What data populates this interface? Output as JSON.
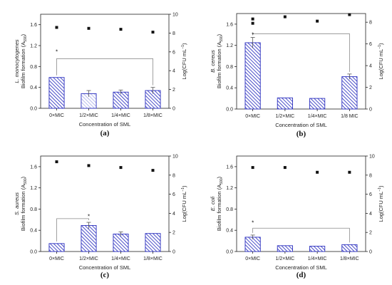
{
  "chart_data": [
    {
      "type": "bar",
      "panel": "(a)",
      "organism": "L. monocytogenes",
      "ylabel": "Biofilm formation (A",
      "ylabel_sub": "590",
      "ylabel_suffix": ")",
      "y2label": "Log(CFU mL",
      "y2label_sup": "−1",
      "y2label_suffix": ")",
      "xlabel": "Concentration of SML",
      "categories": [
        "0×MIC",
        "1/2×MIC",
        "1/4×MIC",
        "1/8×MIC"
      ],
      "values": [
        0.59,
        0.28,
        0.31,
        0.34
      ],
      "errors": [
        0.0,
        0.06,
        0.04,
        0.06
      ],
      "bar_patterns": [
        "dense",
        "light",
        "dense",
        "dense"
      ],
      "cfu": [
        8.6,
        8.5,
        8.4,
        8.1
      ],
      "ylim": [
        0,
        1.8
      ],
      "yticks": [
        "0.0",
        "0.4",
        "0.8",
        "1.2",
        "1.6"
      ],
      "ytick_values": [
        0,
        0.4,
        0.8,
        1.2,
        1.6
      ],
      "y2lim": [
        0,
        10
      ],
      "y2ticks": [
        "0",
        "2",
        "4",
        "6",
        "8",
        "10"
      ],
      "y2tick_values": [
        0,
        2,
        4,
        6,
        8,
        10
      ],
      "bracket": {
        "from": 0,
        "to": 3,
        "y": 0.95
      },
      "stars": [
        {
          "category": 0,
          "y": 1.1,
          "text": "*"
        }
      ]
    },
    {
      "type": "bar",
      "panel": "(b)",
      "organism": "B. cereus",
      "ylabel": "Biofilm formation (A",
      "ylabel_sub": "590",
      "ylabel_suffix": ")",
      "y2label": "Log(CFU mL",
      "y2label_sup": "−1",
      "y2label_suffix": ")",
      "xlabel": "Concentration of SML",
      "categories": [
        "0×MIC",
        "1/2×MIC",
        "1/4×MIC",
        "1/8 MIC"
      ],
      "values": [
        1.25,
        0.21,
        0.2,
        0.61
      ],
      "errors": [
        0.1,
        0.0,
        0.0,
        0.05
      ],
      "bar_patterns": [
        "dense",
        "dense",
        "dense",
        "dense"
      ],
      "cfu": [
        8.3,
        8.5,
        8.1,
        8.7
      ],
      "cfu_extra": [
        {
          "category": 0,
          "value": 7.9
        }
      ],
      "ylim": [
        0,
        1.8
      ],
      "yticks": [
        "0.0",
        "0.4",
        "0.8",
        "1.2",
        "1.6"
      ],
      "ytick_values": [
        0,
        0.4,
        0.8,
        1.2,
        1.6
      ],
      "y2lim": [
        0,
        8.8
      ],
      "y2ticks": [
        "0",
        "2",
        "4",
        "6",
        "8"
      ],
      "y2tick_values": [
        0,
        2,
        4,
        6,
        8
      ],
      "bracket": {
        "from": 0,
        "to": 3,
        "y": 1.42
      },
      "stars": [
        {
          "category": 0,
          "y": 1.42,
          "text": "*"
        }
      ]
    },
    {
      "type": "bar",
      "panel": "(c)",
      "organism": "S. aureus",
      "ylabel": "Biofilm formation (A",
      "ylabel_sub": "590",
      "ylabel_suffix": ")",
      "y2label": "Log(CFU mL",
      "y2label_sup": "−1",
      "y2label_suffix": ")",
      "xlabel": "Concentration of SML",
      "categories": [
        "0×MIC",
        "1/2×MIC",
        "1/4×MIC",
        "1/8×MIC"
      ],
      "values": [
        0.15,
        0.49,
        0.33,
        0.34
      ],
      "errors": [
        0.0,
        0.06,
        0.04,
        0.0
      ],
      "bar_patterns": [
        "dense",
        "dense",
        "dense",
        "dense"
      ],
      "cfu": [
        9.4,
        9.0,
        8.8,
        8.5
      ],
      "ylim": [
        0,
        1.8
      ],
      "yticks": [
        "0.0",
        "0.4",
        "0.8",
        "1.2",
        "1.6"
      ],
      "ytick_values": [
        0,
        0.4,
        0.8,
        1.2,
        1.6
      ],
      "y2lim": [
        0,
        10
      ],
      "y2ticks": [
        "0",
        "2",
        "4",
        "6",
        "8",
        "10"
      ],
      "y2tick_values": [
        0,
        2,
        4,
        6,
        8,
        10
      ],
      "bracket": {
        "from": 0,
        "to": 1,
        "y": 0.62
      },
      "stars": [
        {
          "category": 1,
          "y": 0.68,
          "text": "*"
        }
      ]
    },
    {
      "type": "bar",
      "panel": "(d)",
      "organism": "E. coli",
      "ylabel": "Biofilm formation (A",
      "ylabel_sub": "590",
      "ylabel_suffix": ")",
      "y2label": "Log(CFU mL",
      "y2label_sup": "−1",
      "y2label_suffix": ")",
      "xlabel": "Concentration of SML",
      "categories": [
        "0×MIC",
        "1/2×MIC",
        "1/4×MIC",
        "1/8×MIC"
      ],
      "values": [
        0.27,
        0.11,
        0.1,
        0.13
      ],
      "errors": [
        0.04,
        0.0,
        0.0,
        0.0
      ],
      "bar_patterns": [
        "dense",
        "dense",
        "dense",
        "dense"
      ],
      "cfu": [
        8.8,
        8.8,
        8.3,
        8.3
      ],
      "ylim": [
        0,
        1.8
      ],
      "yticks": [
        "0.0",
        "0.4",
        "0.8",
        "1.2",
        "1.6"
      ],
      "ytick_values": [
        0,
        0.4,
        0.8,
        1.2,
        1.6
      ],
      "y2lim": [
        0,
        10
      ],
      "y2ticks": [
        "0",
        "2",
        "4",
        "6",
        "8",
        "10"
      ],
      "y2tick_values": [
        0,
        2,
        4,
        6,
        8,
        10
      ],
      "bracket": {
        "from": 0,
        "to": 3,
        "y": 0.44
      },
      "stars": [
        {
          "category": 0,
          "y": 0.56,
          "text": "*"
        }
      ]
    }
  ],
  "colors": {
    "bar_stroke": "#2b2fbf",
    "bar_hatch_dense": "#2b2fbf",
    "bar_hatch_light": "#8d92e0",
    "marker": "#111111",
    "axis": "#222222",
    "bracket": "#8a8a8a"
  }
}
